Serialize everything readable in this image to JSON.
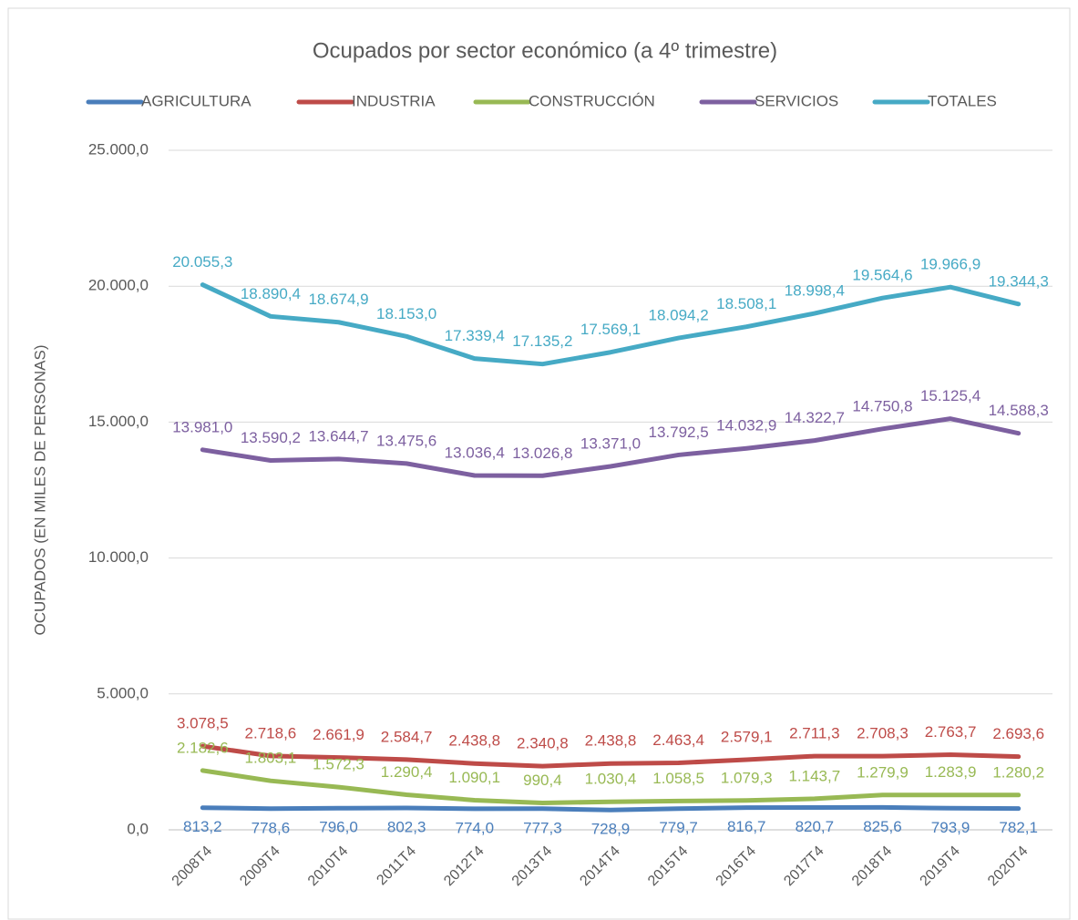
{
  "chart_data": {
    "type": "line",
    "title": "Ocupados por sector económico (a 4º trimestre)",
    "ylabel": "OCUPADOS (EN MILES DE PERSONAS)",
    "categories": [
      "2008T4",
      "2009T4",
      "2010T4",
      "2011T4",
      "2012T4",
      "2013T4",
      "2014T4",
      "2015T4",
      "2016T4",
      "2017T4",
      "2018T4",
      "2019T4",
      "2020T4"
    ],
    "series": [
      {
        "name": "AGRICULTURA",
        "color": "#4a7ebb",
        "values": [
          813.2,
          778.6,
          796.0,
          802.3,
          774.0,
          777.3,
          728.9,
          779.7,
          816.7,
          820.7,
          825.6,
          793.9,
          782.1
        ],
        "value_labels": [
          "813,2",
          "778,6",
          "796,0",
          "802,3",
          "774,0",
          "777,3",
          "728,9",
          "779,7",
          "816,7",
          "820,7",
          "825,6",
          "793,9",
          "782,1"
        ]
      },
      {
        "name": "INDUSTRIA",
        "color": "#be4b48",
        "values": [
          3078.5,
          2718.6,
          2661.9,
          2584.7,
          2438.8,
          2340.8,
          2438.8,
          2463.4,
          2579.1,
          2711.3,
          2708.3,
          2763.7,
          2693.6
        ],
        "value_labels": [
          "3.078,5",
          "2.718,6",
          "2.661,9",
          "2.584,7",
          "2.438,8",
          "2.340,8",
          "2.438,8",
          "2.463,4",
          "2.579,1",
          "2.711,3",
          "2.708,3",
          "2.763,7",
          "2.693,6"
        ]
      },
      {
        "name": "CONSTRUCCIÓN",
        "color": "#98b954",
        "values": [
          2182.6,
          1803.1,
          1572.3,
          1290.4,
          1090.1,
          990.4,
          1030.4,
          1058.5,
          1079.3,
          1143.7,
          1279.9,
          1283.9,
          1280.2
        ],
        "value_labels": [
          "2.182,6",
          "1.803,1",
          "1.572,3",
          "1.290,4",
          "1.090,1",
          "990,4",
          "1.030,4",
          "1.058,5",
          "1.079,3",
          "1.143,7",
          "1.279,9",
          "1.283,9",
          "1.280,2"
        ]
      },
      {
        "name": "SERVICIOS",
        "color": "#7d60a0",
        "values": [
          13981.0,
          13590.2,
          13644.7,
          13475.6,
          13036.4,
          13026.8,
          13371.0,
          13792.5,
          14032.9,
          14322.7,
          14750.8,
          15125.4,
          14588.3
        ],
        "value_labels": [
          "13.981,0",
          "13.590,2",
          "13.644,7",
          "13.475,6",
          "13.036,4",
          "13.026,8",
          "13.371,0",
          "13.792,5",
          "14.032,9",
          "14.322,7",
          "14.750,8",
          "15.125,4",
          "14.588,3"
        ]
      },
      {
        "name": "TOTALES",
        "color": "#46aac5",
        "values": [
          20055.3,
          18890.4,
          18674.9,
          18153.0,
          17339.4,
          17135.2,
          17569.1,
          18094.2,
          18508.1,
          18998.4,
          19564.6,
          19966.9,
          19344.3
        ],
        "value_labels": [
          "20.055,3",
          "18.890,4",
          "18.674,9",
          "18.153,0",
          "17.339,4",
          "17.135,2",
          "17.569,1",
          "18.094,2",
          "18.508,1",
          "18.998,4",
          "19.564,6",
          "19.966,9",
          "19.344,3"
        ]
      }
    ],
    "ylim": [
      0,
      25000
    ],
    "yticks": [
      {
        "value": 0,
        "label": "0,0"
      },
      {
        "value": 5000,
        "label": "5.000,0"
      },
      {
        "value": 10000,
        "label": "10.000,0"
      },
      {
        "value": 15000,
        "label": "15.000,0"
      },
      {
        "value": 20000,
        "label": "20.000,0"
      },
      {
        "value": 25000,
        "label": "25.000,0"
      }
    ],
    "grid": true,
    "legend": "top"
  }
}
